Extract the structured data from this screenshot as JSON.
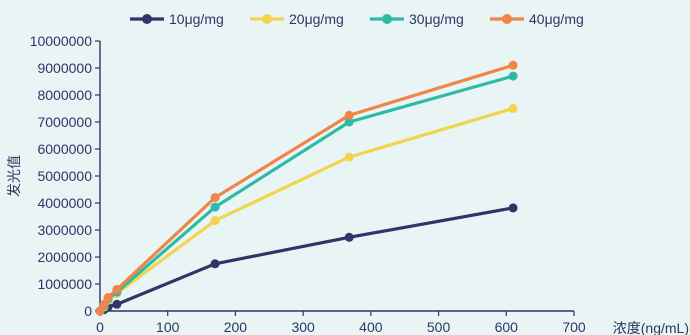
{
  "chart_data": {
    "type": "line",
    "title": "",
    "xlabel": "浓度(ng/mL)",
    "ylabel": "发光值",
    "xlim": [
      0,
      700
    ],
    "ylim": [
      0,
      10000000
    ],
    "x_ticks": [
      "0",
      "100",
      "200",
      "300",
      "400",
      "500",
      "600",
      "700"
    ],
    "y_ticks": [
      "0",
      "1000000",
      "2000000",
      "3000000",
      "4000000",
      "5000000",
      "6000000",
      "7000000",
      "8000000",
      "9000000",
      "10000000"
    ],
    "grid": false,
    "legend_position": "top",
    "series": [
      {
        "name": "10μg/mg",
        "color": "#2F3566",
        "points": [
          [
            0,
            0
          ],
          [
            6,
            50000
          ],
          [
            12,
            150000
          ],
          [
            25,
            250000
          ],
          [
            170,
            1750000
          ],
          [
            368,
            2730000
          ],
          [
            610,
            3820000
          ]
        ]
      },
      {
        "name": "20μg/mg",
        "color": "#F2D44E",
        "points": [
          [
            0,
            0
          ],
          [
            6,
            150000
          ],
          [
            12,
            400000
          ],
          [
            25,
            650000
          ],
          [
            170,
            3350000
          ],
          [
            368,
            5700000
          ],
          [
            610,
            7500000
          ]
        ]
      },
      {
        "name": "30μg/mg",
        "color": "#2DBBA6",
        "points": [
          [
            0,
            0
          ],
          [
            6,
            200000
          ],
          [
            12,
            450000
          ],
          [
            25,
            700000
          ],
          [
            170,
            3850000
          ],
          [
            368,
            7000000
          ],
          [
            610,
            8700000
          ]
        ]
      },
      {
        "name": "40μg/mg",
        "color": "#EF8548",
        "points": [
          [
            0,
            0
          ],
          [
            6,
            250000
          ],
          [
            12,
            500000
          ],
          [
            25,
            800000
          ],
          [
            170,
            4200000
          ],
          [
            368,
            7250000
          ],
          [
            610,
            9100000
          ]
        ]
      }
    ]
  }
}
